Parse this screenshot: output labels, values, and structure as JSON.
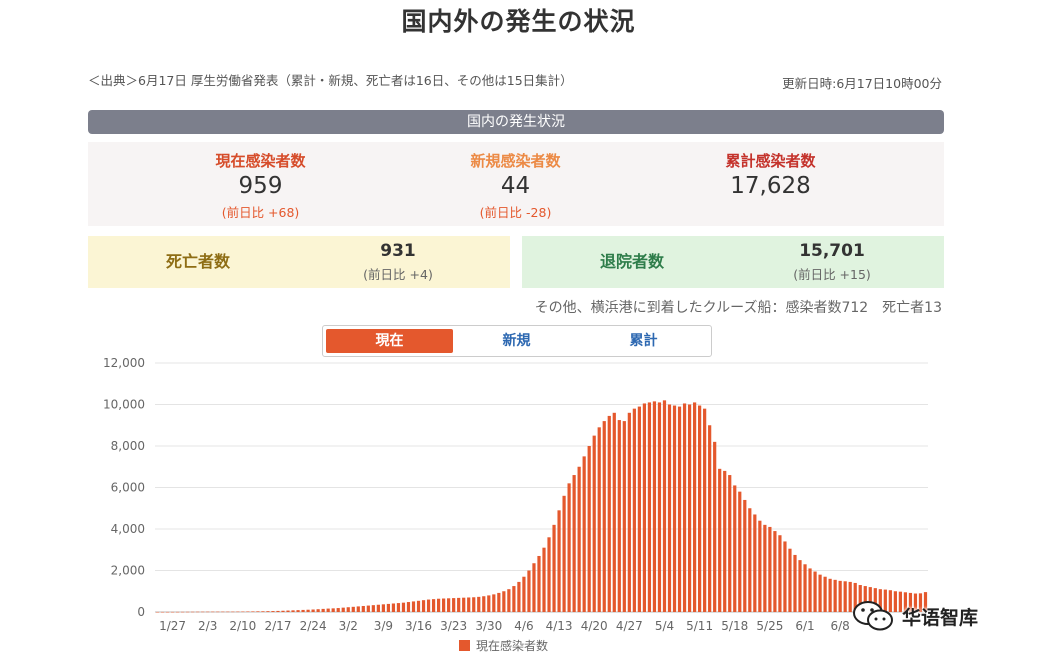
{
  "title": "国内外の発生の状況",
  "source_note": "＜出典＞6月17日 厚生労働省発表（累計・新規、死亡者は16日、その他は15日集計）",
  "updated": "更新日時:6月17日10時00分",
  "section_title": "国内の発生状況",
  "stats": {
    "current": {
      "label": "現在感染者数",
      "value": "959",
      "delta": "(前日比 +68)"
    },
    "new": {
      "label": "新規感染者数",
      "value": "44",
      "delta": "(前日比 -28)"
    },
    "total": {
      "label": "累計感染者数",
      "value": "17,628"
    }
  },
  "deaths": {
    "label": "死亡者数",
    "value": "931",
    "delta": "(前日比 +4)"
  },
  "recovered": {
    "label": "退院者数",
    "value": "15,701",
    "delta": "(前日比 +15)"
  },
  "cruise_note": "その他、横浜港に到着したクルーズ船：感染者数712　死亡者13",
  "tabs": [
    "現在",
    "新規",
    "累計"
  ],
  "active_tab": "現在",
  "watermark": "华语智库",
  "colors": {
    "accent": "#e4582d",
    "section_bar": "#7c7f8c",
    "tab_text": "#2d68b1"
  },
  "chart_data": {
    "type": "bar",
    "x_tick_labels": [
      "1/27",
      "2/3",
      "2/10",
      "2/17",
      "2/24",
      "3/2",
      "3/9",
      "3/16",
      "3/23",
      "3/30",
      "4/6",
      "4/13",
      "4/20",
      "4/27",
      "5/4",
      "5/11",
      "5/18",
      "5/25",
      "6/1",
      "6/8"
    ],
    "x_start": "1/27",
    "legend": "現在感染者数",
    "legend_position": "bottom",
    "ylim": [
      0,
      12000
    ],
    "y_ticks": [
      0,
      2000,
      4000,
      6000,
      8000,
      10000,
      12000
    ],
    "y_tick_labels": [
      "0",
      "2,000",
      "4,000",
      "6,000",
      "8,000",
      "10,000",
      "12,000"
    ],
    "grid": true,
    "color": "#e4582d",
    "series": [
      {
        "name": "現在感染者数",
        "values": [
          3,
          4,
          4,
          5,
          6,
          8,
          10,
          12,
          14,
          15,
          16,
          17,
          17,
          18,
          18,
          18,
          20,
          22,
          25,
          28,
          32,
          35,
          40,
          45,
          52,
          60,
          70,
          80,
          90,
          100,
          110,
          120,
          135,
          150,
          165,
          175,
          190,
          210,
          230,
          250,
          270,
          290,
          310,
          330,
          350,
          370,
          390,
          410,
          430,
          450,
          480,
          510,
          540,
          570,
          600,
          620,
          640,
          650,
          660,
          670,
          680,
          690,
          700,
          710,
          730,
          760,
          800,
          850,
          920,
          1000,
          1100,
          1250,
          1450,
          1700,
          2000,
          2350,
          2700,
          3100,
          3600,
          4200,
          4900,
          5600,
          6200,
          6600,
          7000,
          7500,
          8000,
          8500,
          8900,
          9200,
          9450,
          9600,
          9250,
          9200,
          9600,
          9800,
          9900,
          10050,
          10100,
          10150,
          10100,
          10200,
          10000,
          9950,
          9900,
          10050,
          10000,
          10100,
          9950,
          9800,
          9000,
          8200,
          6900,
          6800,
          6600,
          6100,
          5800,
          5400,
          5000,
          4700,
          4400,
          4200,
          4100,
          3900,
          3700,
          3400,
          3050,
          2750,
          2500,
          2300,
          2100,
          1950,
          1800,
          1700,
          1600,
          1550,
          1500,
          1480,
          1450,
          1400,
          1300,
          1250,
          1200,
          1150,
          1100,
          1080,
          1050,
          1000,
          980,
          950,
          920,
          890,
          900,
          959
        ]
      }
    ]
  }
}
